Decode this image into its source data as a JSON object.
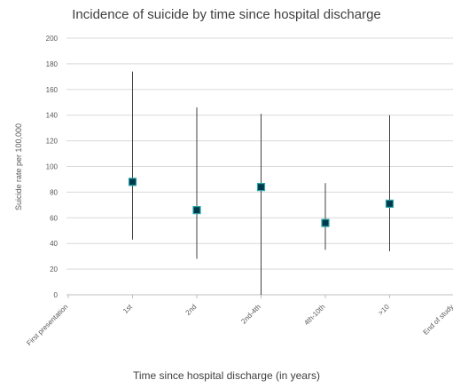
{
  "chart_data": {
    "type": "scatter",
    "title": "Incidence of suicide by time since hospital discharge",
    "xlabel": "Time since hospital discharge (in years)",
    "ylabel": "Suicide rate per 100,000",
    "ylim": [
      0,
      200
    ],
    "yticks": [
      0,
      20,
      40,
      60,
      80,
      100,
      120,
      140,
      160,
      180,
      200
    ],
    "categories": [
      "First presentation",
      "1st",
      "2nd",
      "2nd-4th",
      "4th-10th",
      ">10",
      "End of study"
    ],
    "points": [
      {
        "category": "1st",
        "value": 88,
        "low": 43,
        "high": 174
      },
      {
        "category": "2nd",
        "value": 66,
        "low": 28,
        "high": 146
      },
      {
        "category": "2nd-4th",
        "value": 84,
        "low": 0,
        "high": 141
      },
      {
        "category": "4th-10th",
        "value": 56,
        "low": 35,
        "high": 87
      },
      {
        "category": ">10",
        "value": 71,
        "low": 34,
        "high": 140
      }
    ],
    "grid": true,
    "marker_color": "#00394d",
    "marker_edge_color": "#2ca6a4",
    "error_bar_color": "#404040",
    "grid_color": "#d9d9d9"
  }
}
